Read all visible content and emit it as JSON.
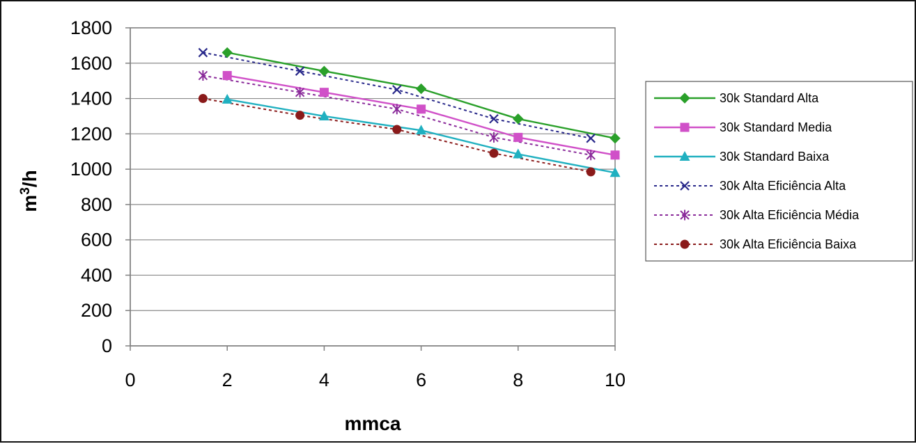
{
  "chart_data": {
    "type": "line",
    "title": "",
    "xlabel": "mmca",
    "ylabel_base": "m",
    "ylabel_sup": "3",
    "ylabel_tail": "/h",
    "xlim": [
      0,
      10
    ],
    "ylim": [
      0,
      1800
    ],
    "x_ticks": [
      0,
      2,
      4,
      6,
      8,
      10
    ],
    "y_ticks": [
      0,
      200,
      400,
      600,
      800,
      1000,
      1200,
      1400,
      1600,
      1800
    ],
    "grid": "horizontal",
    "legend_position": "right",
    "series": [
      {
        "name": "30k Standard Alta",
        "color": "#2aa02a",
        "dash": "solid",
        "marker": "diamond",
        "points": [
          [
            2,
            1660
          ],
          [
            4,
            1555
          ],
          [
            6,
            1455
          ],
          [
            8,
            1285
          ],
          [
            10,
            1175
          ]
        ]
      },
      {
        "name": "30k Standard Media",
        "color": "#d050c8",
        "dash": "solid",
        "marker": "square",
        "points": [
          [
            2,
            1530
          ],
          [
            4,
            1435
          ],
          [
            6,
            1340
          ],
          [
            8,
            1180
          ],
          [
            10,
            1080
          ]
        ]
      },
      {
        "name": "30k Standard Baixa",
        "color": "#20b0c0",
        "dash": "solid",
        "marker": "triangle",
        "points": [
          [
            2,
            1395
          ],
          [
            4,
            1300
          ],
          [
            6,
            1220
          ],
          [
            8,
            1085
          ],
          [
            10,
            980
          ]
        ]
      },
      {
        "name": "30k Alta Eficiência Alta",
        "color": "#28288a",
        "dash": "dotted",
        "marker": "x",
        "points": [
          [
            1.5,
            1660
          ],
          [
            3.5,
            1555
          ],
          [
            5.5,
            1450
          ],
          [
            7.5,
            1285
          ],
          [
            9.5,
            1175
          ]
        ]
      },
      {
        "name": "30k Alta Eficiência Média",
        "color": "#8a2a9a",
        "dash": "dotted",
        "marker": "star",
        "points": [
          [
            1.5,
            1530
          ],
          [
            3.5,
            1435
          ],
          [
            5.5,
            1340
          ],
          [
            7.5,
            1180
          ],
          [
            9.5,
            1080
          ]
        ]
      },
      {
        "name": "30k Alta Eficiência Baixa",
        "color": "#8a1a1a",
        "dash": "dotted",
        "marker": "circle",
        "points": [
          [
            1.5,
            1400
          ],
          [
            3.5,
            1305
          ],
          [
            5.5,
            1225
          ],
          [
            7.5,
            1090
          ],
          [
            9.5,
            985
          ]
        ]
      }
    ]
  }
}
